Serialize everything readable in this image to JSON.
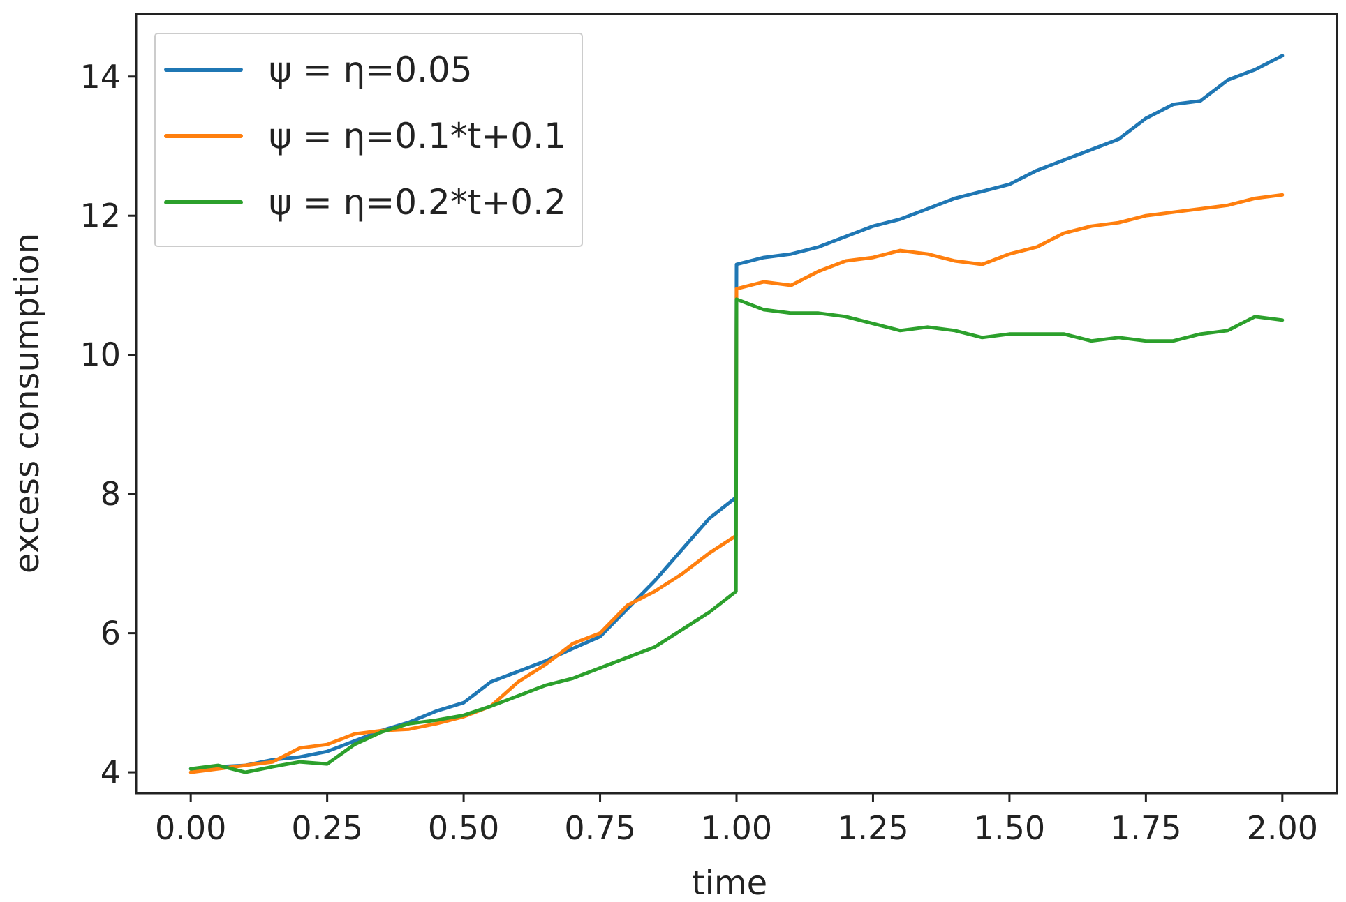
{
  "chart_data": {
    "type": "line",
    "title": "",
    "xlabel": "time",
    "ylabel": "excess consumption",
    "xlim": [
      -0.1,
      2.1
    ],
    "ylim": [
      3.7,
      14.9
    ],
    "xticks": [
      0.0,
      0.25,
      0.5,
      0.75,
      1.0,
      1.25,
      1.5,
      1.75,
      2.0
    ],
    "xtick_labels": [
      "0.00",
      "0.25",
      "0.50",
      "0.75",
      "1.00",
      "1.25",
      "1.50",
      "1.75",
      "2.00"
    ],
    "yticks": [
      4,
      6,
      8,
      10,
      12,
      14
    ],
    "ytick_labels": [
      "4",
      "6",
      "8",
      "10",
      "12",
      "14"
    ],
    "grid": false,
    "legend_position": "top-left",
    "series": [
      {
        "name": "ψ = η=0.05",
        "color": "#1f77b4",
        "x": [
          0.0,
          0.05,
          0.1,
          0.15,
          0.2,
          0.25,
          0.3,
          0.35,
          0.4,
          0.45,
          0.5,
          0.55,
          0.6,
          0.65,
          0.7,
          0.75,
          0.8,
          0.85,
          0.9,
          0.95,
          0.999,
          1.0,
          1.05,
          1.1,
          1.15,
          1.2,
          1.25,
          1.3,
          1.35,
          1.4,
          1.45,
          1.5,
          1.55,
          1.6,
          1.65,
          1.7,
          1.75,
          1.8,
          1.85,
          1.9,
          1.95,
          2.0
        ],
        "values": [
          4.05,
          4.08,
          4.1,
          4.18,
          4.22,
          4.3,
          4.45,
          4.6,
          4.72,
          4.88,
          5.0,
          5.3,
          5.45,
          5.6,
          5.78,
          5.95,
          6.35,
          6.75,
          7.2,
          7.65,
          7.95,
          11.3,
          11.4,
          11.45,
          11.55,
          11.7,
          11.85,
          11.95,
          12.1,
          12.25,
          12.35,
          12.45,
          12.65,
          12.8,
          12.95,
          13.1,
          13.4,
          13.6,
          13.65,
          13.95,
          14.1,
          14.3
        ]
      },
      {
        "name": "ψ = η=0.1*t+0.1",
        "color": "#ff7f0e",
        "x": [
          0.0,
          0.05,
          0.1,
          0.15,
          0.2,
          0.25,
          0.3,
          0.35,
          0.4,
          0.45,
          0.5,
          0.55,
          0.6,
          0.65,
          0.7,
          0.75,
          0.8,
          0.85,
          0.9,
          0.95,
          0.999,
          1.0,
          1.05,
          1.1,
          1.15,
          1.2,
          1.25,
          1.3,
          1.35,
          1.4,
          1.45,
          1.5,
          1.55,
          1.6,
          1.65,
          1.7,
          1.75,
          1.8,
          1.85,
          1.9,
          1.95,
          2.0
        ],
        "values": [
          4.0,
          4.05,
          4.1,
          4.15,
          4.35,
          4.4,
          4.55,
          4.6,
          4.62,
          4.7,
          4.8,
          4.95,
          5.3,
          5.55,
          5.85,
          6.0,
          6.4,
          6.6,
          6.85,
          7.15,
          7.4,
          10.95,
          11.05,
          11.0,
          11.2,
          11.35,
          11.4,
          11.5,
          11.45,
          11.35,
          11.3,
          11.45,
          11.55,
          11.75,
          11.85,
          11.9,
          12.0,
          12.05,
          12.1,
          12.15,
          12.25,
          12.3
        ]
      },
      {
        "name": "ψ = η=0.2*t+0.2",
        "color": "#2ca02c",
        "x": [
          0.0,
          0.05,
          0.1,
          0.15,
          0.2,
          0.25,
          0.3,
          0.35,
          0.4,
          0.45,
          0.5,
          0.55,
          0.6,
          0.65,
          0.7,
          0.75,
          0.8,
          0.85,
          0.9,
          0.95,
          0.999,
          1.0,
          1.05,
          1.1,
          1.15,
          1.2,
          1.25,
          1.3,
          1.35,
          1.4,
          1.45,
          1.5,
          1.55,
          1.6,
          1.65,
          1.7,
          1.75,
          1.8,
          1.85,
          1.9,
          1.95,
          2.0
        ],
        "values": [
          4.05,
          4.1,
          4.0,
          4.08,
          4.15,
          4.12,
          4.4,
          4.58,
          4.7,
          4.75,
          4.82,
          4.95,
          5.1,
          5.25,
          5.35,
          5.5,
          5.65,
          5.8,
          6.05,
          6.3,
          6.6,
          10.8,
          10.65,
          10.6,
          10.6,
          10.55,
          10.45,
          10.35,
          10.4,
          10.35,
          10.25,
          10.3,
          10.3,
          10.3,
          10.2,
          10.25,
          10.2,
          10.2,
          10.3,
          10.35,
          10.55,
          10.5
        ]
      }
    ]
  }
}
